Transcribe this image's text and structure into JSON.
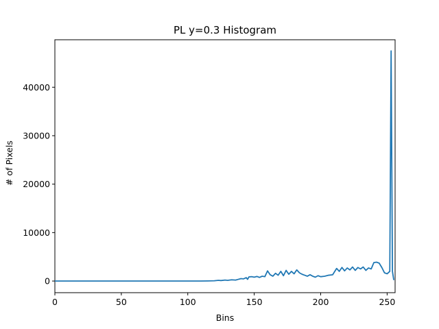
{
  "chart_data": {
    "type": "line",
    "title": "PL y=0.3 Histogram",
    "xlabel": "Bins",
    "ylabel": "# of Pixels",
    "xlim": [
      0,
      256
    ],
    "ylim": [
      -2400,
      49800
    ],
    "xticks": [
      0,
      50,
      100,
      150,
      200,
      250
    ],
    "yticks": [
      0,
      10000,
      20000,
      30000,
      40000
    ],
    "grid": false,
    "legend": "none",
    "line_color": "#1f77b4",
    "series": [
      {
        "points": [
          [
            0,
            0
          ],
          [
            20,
            0
          ],
          [
            40,
            0
          ],
          [
            60,
            0
          ],
          [
            80,
            0
          ],
          [
            100,
            0
          ],
          [
            110,
            0
          ],
          [
            115,
            20
          ],
          [
            120,
            60
          ],
          [
            123,
            150
          ],
          [
            125,
            100
          ],
          [
            128,
            200
          ],
          [
            130,
            150
          ],
          [
            133,
            250
          ],
          [
            136,
            200
          ],
          [
            138,
            350
          ],
          [
            140,
            500
          ],
          [
            142,
            450
          ],
          [
            144,
            700
          ],
          [
            145,
            350
          ],
          [
            146,
            850
          ],
          [
            148,
            900
          ],
          [
            150,
            800
          ],
          [
            152,
            950
          ],
          [
            154,
            750
          ],
          [
            156,
            1000
          ],
          [
            158,
            900
          ],
          [
            160,
            2100
          ],
          [
            162,
            1300
          ],
          [
            164,
            1000
          ],
          [
            166,
            1600
          ],
          [
            168,
            1200
          ],
          [
            170,
            2000
          ],
          [
            172,
            1100
          ],
          [
            174,
            2200
          ],
          [
            176,
            1400
          ],
          [
            178,
            2000
          ],
          [
            180,
            1500
          ],
          [
            182,
            2300
          ],
          [
            184,
            1700
          ],
          [
            186,
            1400
          ],
          [
            188,
            1200
          ],
          [
            190,
            1000
          ],
          [
            192,
            1300
          ],
          [
            194,
            1000
          ],
          [
            196,
            800
          ],
          [
            198,
            1100
          ],
          [
            200,
            900
          ],
          [
            203,
            1000
          ],
          [
            206,
            1200
          ],
          [
            209,
            1300
          ],
          [
            212,
            2600
          ],
          [
            214,
            2000
          ],
          [
            216,
            2800
          ],
          [
            218,
            2100
          ],
          [
            220,
            2700
          ],
          [
            222,
            2300
          ],
          [
            224,
            2900
          ],
          [
            226,
            2200
          ],
          [
            228,
            2800
          ],
          [
            230,
            2500
          ],
          [
            232,
            2900
          ],
          [
            234,
            2200
          ],
          [
            236,
            2700
          ],
          [
            238,
            2500
          ],
          [
            240,
            3800
          ],
          [
            242,
            3900
          ],
          [
            244,
            3700
          ],
          [
            246,
            2800
          ],
          [
            248,
            1700
          ],
          [
            250,
            1500
          ],
          [
            252,
            2000
          ],
          [
            253,
            47500
          ],
          [
            254,
            2000
          ],
          [
            255,
            200
          ]
        ]
      }
    ]
  }
}
